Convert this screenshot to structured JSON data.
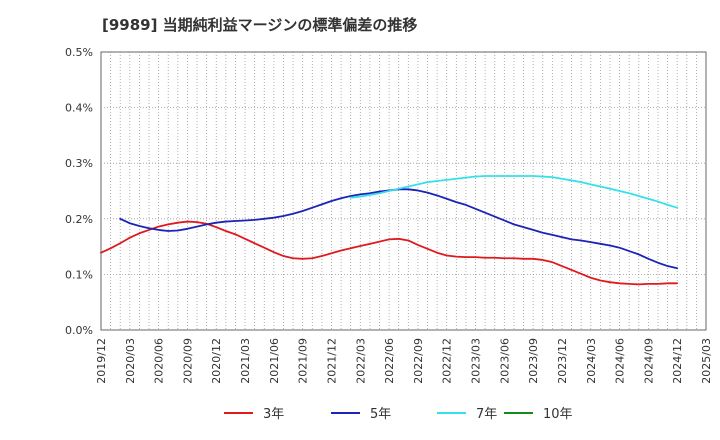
{
  "title": "[9989]  当期純利益マージンの標準偏差の推移",
  "colors": {
    "series_3y": "#e0191c",
    "series_5y": "#1b23b8",
    "series_7y": "#34e1ea",
    "series_10y": "#168a1c",
    "grid": "#999999",
    "axis": "#666666",
    "text": "#333333"
  },
  "chart_data": {
    "type": "line",
    "title": "[9989]  当期純利益マージンの標準偏差の推移",
    "xlabel": "",
    "ylabel": "",
    "ylim": [
      0,
      0.5
    ],
    "y_ticks": [
      {
        "value": 0.0,
        "label": "0.0%"
      },
      {
        "value": 0.1,
        "label": "0.1%"
      },
      {
        "value": 0.2,
        "label": "0.2%"
      },
      {
        "value": 0.3,
        "label": "0.3%"
      },
      {
        "value": 0.4,
        "label": "0.4%"
      },
      {
        "value": 0.5,
        "label": "0.5%"
      }
    ],
    "x_ticks": [
      "2019/12",
      "2020/03",
      "2020/06",
      "2020/09",
      "2020/12",
      "2021/03",
      "2021/06",
      "2021/09",
      "2021/12",
      "2022/03",
      "2022/06",
      "2022/09",
      "2022/12",
      "2023/03",
      "2023/06",
      "2023/09",
      "2023/12",
      "2024/03",
      "2024/06",
      "2024/09",
      "2024/12",
      "2025/03"
    ],
    "x_range": [
      "2019/12",
      "2025/03"
    ],
    "grid": true,
    "legend_position": "bottom",
    "series": [
      {
        "name": "3年",
        "color": "#e0191c",
        "points": [
          [
            "2019/12",
            0.139
          ],
          [
            "2020/01",
            0.147
          ],
          [
            "2020/02",
            0.156
          ],
          [
            "2020/03",
            0.166
          ],
          [
            "2020/04",
            0.174
          ],
          [
            "2020/05",
            0.18
          ],
          [
            "2020/06",
            0.186
          ],
          [
            "2020/07",
            0.19
          ],
          [
            "2020/08",
            0.193
          ],
          [
            "2020/09",
            0.195
          ],
          [
            "2020/10",
            0.194
          ],
          [
            "2020/11",
            0.191
          ],
          [
            "2020/12",
            0.185
          ],
          [
            "2021/01",
            0.178
          ],
          [
            "2021/02",
            0.172
          ],
          [
            "2021/03",
            0.164
          ],
          [
            "2021/04",
            0.156
          ],
          [
            "2021/05",
            0.148
          ],
          [
            "2021/06",
            0.14
          ],
          [
            "2021/07",
            0.133
          ],
          [
            "2021/08",
            0.129
          ],
          [
            "2021/09",
            0.128
          ],
          [
            "2021/10",
            0.129
          ],
          [
            "2021/11",
            0.133
          ],
          [
            "2021/12",
            0.138
          ],
          [
            "2022/01",
            0.143
          ],
          [
            "2022/02",
            0.147
          ],
          [
            "2022/03",
            0.151
          ],
          [
            "2022/04",
            0.155
          ],
          [
            "2022/05",
            0.159
          ],
          [
            "2022/06",
            0.163
          ],
          [
            "2022/07",
            0.164
          ],
          [
            "2022/08",
            0.161
          ],
          [
            "2022/09",
            0.153
          ],
          [
            "2022/10",
            0.146
          ],
          [
            "2022/11",
            0.139
          ],
          [
            "2022/12",
            0.134
          ],
          [
            "2023/01",
            0.132
          ],
          [
            "2023/02",
            0.131
          ],
          [
            "2023/03",
            0.131
          ],
          [
            "2023/04",
            0.13
          ],
          [
            "2023/05",
            0.13
          ],
          [
            "2023/06",
            0.129
          ],
          [
            "2023/07",
            0.129
          ],
          [
            "2023/08",
            0.128
          ],
          [
            "2023/09",
            0.128
          ],
          [
            "2023/10",
            0.126
          ],
          [
            "2023/11",
            0.122
          ],
          [
            "2023/12",
            0.115
          ],
          [
            "2024/01",
            0.108
          ],
          [
            "2024/02",
            0.101
          ],
          [
            "2024/03",
            0.094
          ],
          [
            "2024/04",
            0.089
          ],
          [
            "2024/05",
            0.086
          ],
          [
            "2024/06",
            0.084
          ],
          [
            "2024/07",
            0.083
          ],
          [
            "2024/08",
            0.082
          ],
          [
            "2024/09",
            0.083
          ],
          [
            "2024/10",
            0.083
          ],
          [
            "2024/11",
            0.084
          ],
          [
            "2024/12",
            0.084
          ]
        ]
      },
      {
        "name": "5年",
        "color": "#1b23b8",
        "points": [
          [
            "2020/02",
            0.2
          ],
          [
            "2020/03",
            0.192
          ],
          [
            "2020/04",
            0.187
          ],
          [
            "2020/05",
            0.183
          ],
          [
            "2020/06",
            0.18
          ],
          [
            "2020/07",
            0.178
          ],
          [
            "2020/08",
            0.179
          ],
          [
            "2020/09",
            0.182
          ],
          [
            "2020/10",
            0.186
          ],
          [
            "2020/11",
            0.19
          ],
          [
            "2020/12",
            0.193
          ],
          [
            "2021/01",
            0.195
          ],
          [
            "2021/02",
            0.196
          ],
          [
            "2021/03",
            0.197
          ],
          [
            "2021/04",
            0.198
          ],
          [
            "2021/05",
            0.2
          ],
          [
            "2021/06",
            0.202
          ],
          [
            "2021/07",
            0.205
          ],
          [
            "2021/08",
            0.209
          ],
          [
            "2021/09",
            0.214
          ],
          [
            "2021/10",
            0.22
          ],
          [
            "2021/11",
            0.226
          ],
          [
            "2021/12",
            0.232
          ],
          [
            "2022/01",
            0.237
          ],
          [
            "2022/02",
            0.241
          ],
          [
            "2022/03",
            0.244
          ],
          [
            "2022/04",
            0.246
          ],
          [
            "2022/05",
            0.249
          ],
          [
            "2022/06",
            0.251
          ],
          [
            "2022/07",
            0.253
          ],
          [
            "2022/08",
            0.253
          ],
          [
            "2022/09",
            0.251
          ],
          [
            "2022/10",
            0.247
          ],
          [
            "2022/11",
            0.242
          ],
          [
            "2022/12",
            0.236
          ],
          [
            "2023/01",
            0.23
          ],
          [
            "2023/02",
            0.225
          ],
          [
            "2023/03",
            0.218
          ],
          [
            "2023/04",
            0.211
          ],
          [
            "2023/05",
            0.204
          ],
          [
            "2023/06",
            0.197
          ],
          [
            "2023/07",
            0.19
          ],
          [
            "2023/08",
            0.185
          ],
          [
            "2023/09",
            0.18
          ],
          [
            "2023/10",
            0.175
          ],
          [
            "2023/11",
            0.171
          ],
          [
            "2023/12",
            0.167
          ],
          [
            "2024/01",
            0.163
          ],
          [
            "2024/02",
            0.161
          ],
          [
            "2024/03",
            0.158
          ],
          [
            "2024/04",
            0.155
          ],
          [
            "2024/05",
            0.152
          ],
          [
            "2024/06",
            0.148
          ],
          [
            "2024/07",
            0.142
          ],
          [
            "2024/08",
            0.136
          ],
          [
            "2024/09",
            0.128
          ],
          [
            "2024/10",
            0.121
          ],
          [
            "2024/11",
            0.115
          ],
          [
            "2024/12",
            0.111
          ]
        ]
      },
      {
        "name": "7年",
        "color": "#34e1ea",
        "points": [
          [
            "2022/02",
            0.238
          ],
          [
            "2022/03",
            0.24
          ],
          [
            "2022/04",
            0.243
          ],
          [
            "2022/05",
            0.246
          ],
          [
            "2022/06",
            0.25
          ],
          [
            "2022/07",
            0.254
          ],
          [
            "2022/08",
            0.258
          ],
          [
            "2022/09",
            0.262
          ],
          [
            "2022/10",
            0.266
          ],
          [
            "2022/11",
            0.268
          ],
          [
            "2022/12",
            0.27
          ],
          [
            "2023/01",
            0.272
          ],
          [
            "2023/02",
            0.274
          ],
          [
            "2023/03",
            0.276
          ],
          [
            "2023/04",
            0.277
          ],
          [
            "2023/05",
            0.277
          ],
          [
            "2023/06",
            0.277
          ],
          [
            "2023/07",
            0.277
          ],
          [
            "2023/08",
            0.277
          ],
          [
            "2023/09",
            0.277
          ],
          [
            "2023/10",
            0.276
          ],
          [
            "2023/11",
            0.275
          ],
          [
            "2023/12",
            0.272
          ],
          [
            "2024/01",
            0.269
          ],
          [
            "2024/02",
            0.266
          ],
          [
            "2024/03",
            0.262
          ],
          [
            "2024/04",
            0.258
          ],
          [
            "2024/05",
            0.254
          ],
          [
            "2024/06",
            0.25
          ],
          [
            "2024/07",
            0.246
          ],
          [
            "2024/08",
            0.241
          ],
          [
            "2024/09",
            0.236
          ],
          [
            "2024/10",
            0.231
          ],
          [
            "2024/11",
            0.225
          ],
          [
            "2024/12",
            0.22
          ]
        ]
      },
      {
        "name": "10年",
        "color": "#168a1c",
        "points": []
      }
    ]
  }
}
